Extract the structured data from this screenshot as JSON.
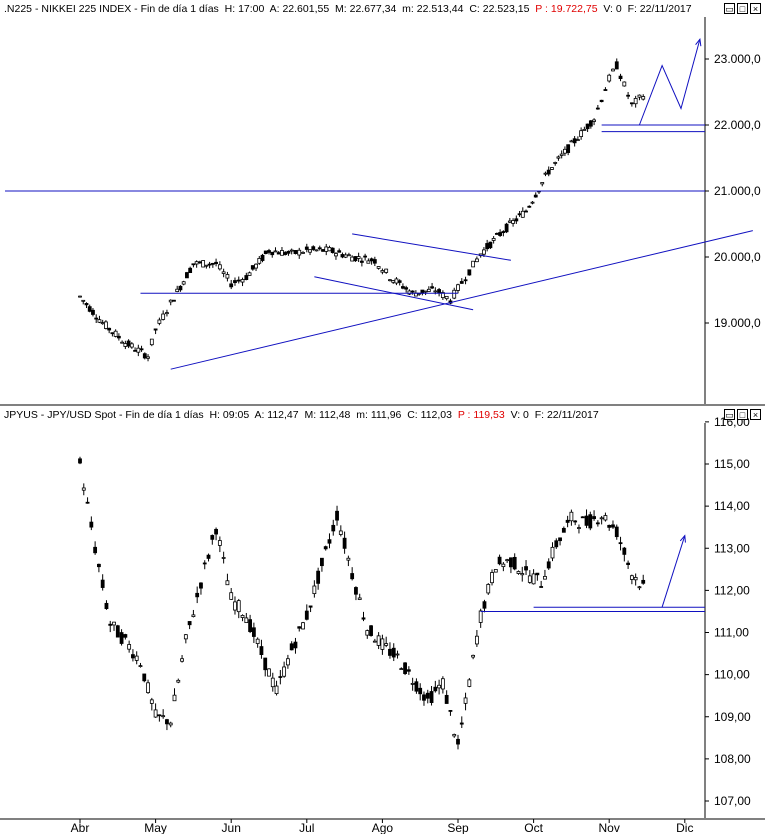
{
  "panels": {
    "top": {
      "symbol": ".N225",
      "desc": "NIKKEI 225 INDEX",
      "period": "Fin de día 1 días",
      "h": "H: 17:00",
      "a": "A: 22.601,55",
      "m": "M: 22.677,34",
      "mm": "m: 22.513,44",
      "c": "C: 22.523,15",
      "p": "P : 19.722,75",
      "v": "V: 0",
      "f": "F: 22/11/2017"
    },
    "bottom": {
      "symbol": "JPYUS",
      "desc": "JPY/USD Spot",
      "period": "Fin de día 1 días",
      "h": "H: 09:05",
      "a": "A: 112,47",
      "m": "M: 112,48",
      "mm": "m: 111,96",
      "c": "C: 112,03",
      "p": "P : 119,53",
      "v": "V: 0",
      "f": "F: 22/11/2017"
    }
  },
  "window_buttons": {
    "restore": "▭",
    "maximize": "□",
    "close": "×"
  },
  "chart_data": [
    {
      "type": "candlestick",
      "title": ".N225 - NIKKEI 225 INDEX",
      "x_ticks": [
        "Abr",
        "May",
        "Jun",
        "Jul",
        "Ago",
        "Sep",
        "Oct",
        "Nov",
        "Dic"
      ],
      "y_ticks": [
        "19.000,0",
        "20.000,0",
        "21.000,0",
        "22.000,0",
        "23.000,0"
      ],
      "ylim": [
        18300,
        23400
      ],
      "series": [
        {
          "month": 0.0,
          "close": 19400
        },
        {
          "month": 0.3,
          "close": 19000
        },
        {
          "month": 0.6,
          "close": 18700
        },
        {
          "month": 0.9,
          "close": 18500
        },
        {
          "month": 1.0,
          "close": 18900
        },
        {
          "month": 1.2,
          "close": 19300
        },
        {
          "month": 1.5,
          "close": 19900
        },
        {
          "month": 1.8,
          "close": 19900
        },
        {
          "month": 2.0,
          "close": 19600
        },
        {
          "month": 2.2,
          "close": 19700
        },
        {
          "month": 2.5,
          "close": 20100
        },
        {
          "month": 2.8,
          "close": 20050
        },
        {
          "month": 3.0,
          "close": 20100
        },
        {
          "month": 3.3,
          "close": 20100
        },
        {
          "month": 3.6,
          "close": 20000
        },
        {
          "month": 3.9,
          "close": 19950
        },
        {
          "month": 4.1,
          "close": 19700
        },
        {
          "month": 4.4,
          "close": 19450
        },
        {
          "month": 4.7,
          "close": 19500
        },
        {
          "month": 4.9,
          "close": 19350
        },
        {
          "month": 5.1,
          "close": 19700
        },
        {
          "month": 5.3,
          "close": 20050
        },
        {
          "month": 5.6,
          "close": 20400
        },
        {
          "month": 5.9,
          "close": 20700
        },
        {
          "month": 6.2,
          "close": 21300
        },
        {
          "month": 6.5,
          "close": 21700
        },
        {
          "month": 6.8,
          "close": 22100
        },
        {
          "month": 7.0,
          "close": 22700
        },
        {
          "month": 7.1,
          "close": 22900
        },
        {
          "month": 7.3,
          "close": 22300
        },
        {
          "month": 7.5,
          "close": 22500
        }
      ],
      "annotations": {
        "hlines": [
          21000,
          19450,
          22000,
          21900
        ],
        "trend_lines": [
          {
            "from": [
              1.2,
              18300
            ],
            "to": [
              8.9,
              20400
            ]
          },
          {
            "from": [
              3.6,
              20350
            ],
            "to": [
              5.7,
              19950
            ]
          },
          {
            "from": [
              3.1,
              19700
            ],
            "to": [
              5.2,
              19200
            ]
          }
        ],
        "forecast_arrow": [
          [
            7.4,
            22000
          ],
          [
            7.7,
            22900
          ],
          [
            7.95,
            22250
          ],
          [
            8.2,
            23300
          ]
        ]
      }
    },
    {
      "type": "candlestick",
      "title": "JPYUS - JPY/USD Spot",
      "x_ticks": [
        "Abr",
        "May",
        "Jun",
        "Jul",
        "Ago",
        "Sep",
        "Oct",
        "Nov",
        "Dic"
      ],
      "y_ticks": [
        "107,00",
        "108,00",
        "109,00",
        "110,00",
        "111,00",
        "112,00",
        "113,00",
        "114,00",
        "115,00",
        "116,00"
      ],
      "ylim": [
        106.7,
        116.1
      ],
      "series": [
        {
          "month": 0.0,
          "close": 115.0
        },
        {
          "month": 0.2,
          "close": 113.0
        },
        {
          "month": 0.4,
          "close": 111.2
        },
        {
          "month": 0.6,
          "close": 110.8
        },
        {
          "month": 0.8,
          "close": 110.3
        },
        {
          "month": 1.0,
          "close": 109.0
        },
        {
          "month": 1.2,
          "close": 108.9
        },
        {
          "month": 1.4,
          "close": 110.8
        },
        {
          "month": 1.6,
          "close": 112.2
        },
        {
          "month": 1.8,
          "close": 113.5
        },
        {
          "month": 2.0,
          "close": 111.8
        },
        {
          "month": 2.2,
          "close": 111.4
        },
        {
          "month": 2.4,
          "close": 110.5
        },
        {
          "month": 2.6,
          "close": 109.6
        },
        {
          "month": 2.8,
          "close": 110.6
        },
        {
          "month": 3.0,
          "close": 111.4
        },
        {
          "month": 3.2,
          "close": 112.6
        },
        {
          "month": 3.4,
          "close": 113.8
        },
        {
          "month": 3.6,
          "close": 112.4
        },
        {
          "month": 3.8,
          "close": 111.1
        },
        {
          "month": 4.0,
          "close": 110.7
        },
        {
          "month": 4.2,
          "close": 110.4
        },
        {
          "month": 4.4,
          "close": 109.9
        },
        {
          "month": 4.6,
          "close": 109.4
        },
        {
          "month": 4.8,
          "close": 109.8
        },
        {
          "month": 5.0,
          "close": 108.3
        },
        {
          "month": 5.1,
          "close": 109.3
        },
        {
          "month": 5.3,
          "close": 111.4
        },
        {
          "month": 5.5,
          "close": 112.6
        },
        {
          "month": 5.7,
          "close": 112.7
        },
        {
          "month": 5.9,
          "close": 112.4
        },
        {
          "month": 6.1,
          "close": 112.2
        },
        {
          "month": 6.3,
          "close": 113.1
        },
        {
          "month": 6.5,
          "close": 113.7
        },
        {
          "month": 6.7,
          "close": 113.6
        },
        {
          "month": 6.9,
          "close": 113.8
        },
        {
          "month": 7.1,
          "close": 113.4
        },
        {
          "month": 7.3,
          "close": 112.4
        },
        {
          "month": 7.5,
          "close": 112.0
        }
      ],
      "annotations": {
        "hlines": [
          111.6,
          111.5
        ],
        "forecast_arrow": [
          [
            7.7,
            111.6
          ],
          [
            8.0,
            113.3
          ]
        ]
      }
    }
  ]
}
